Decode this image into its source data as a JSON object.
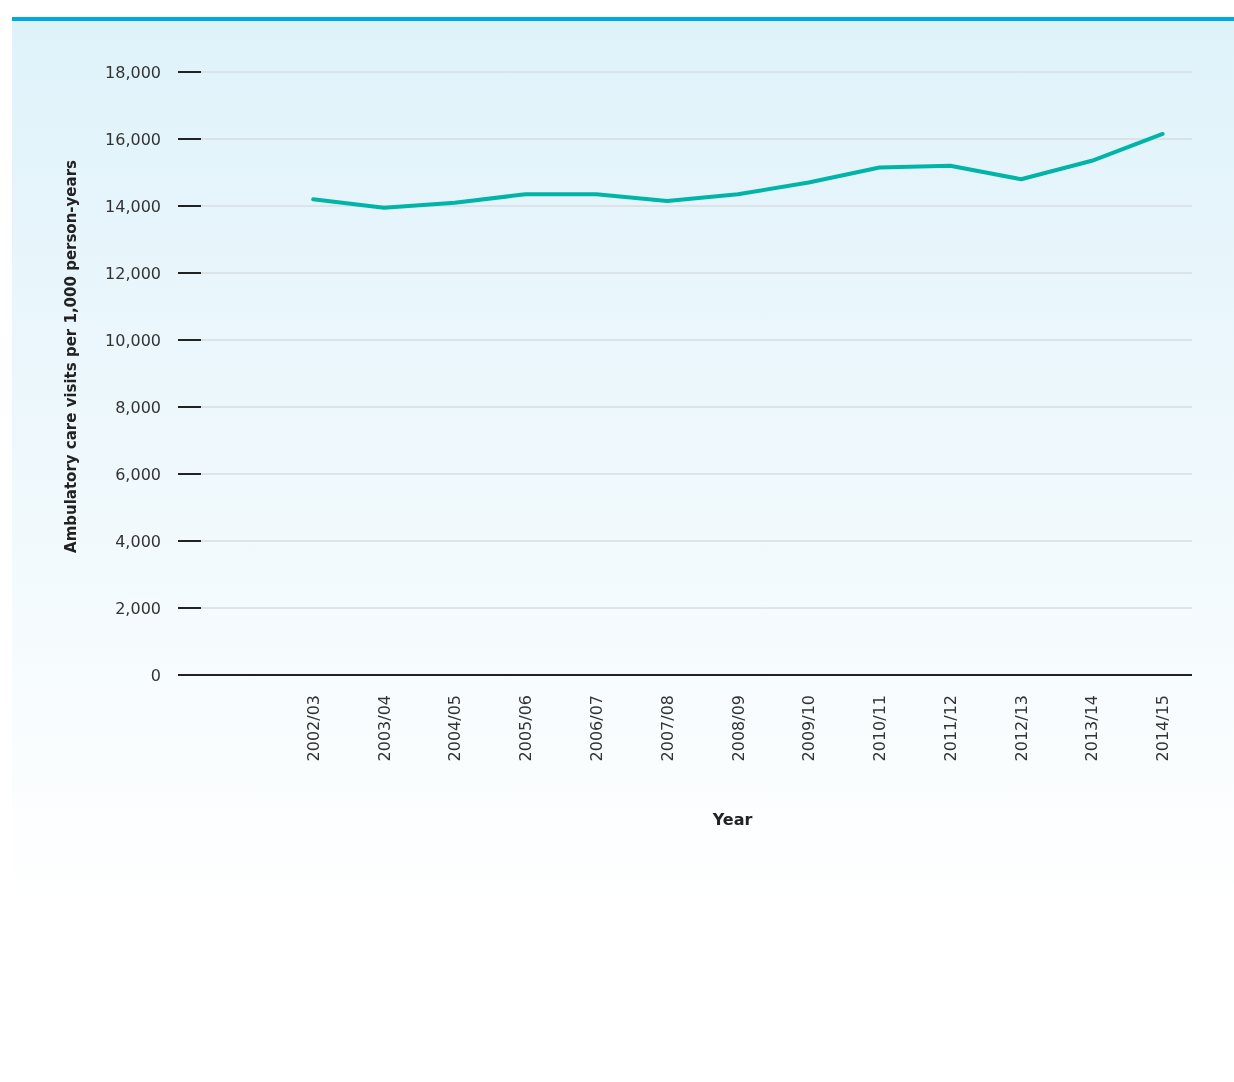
{
  "chart_data": {
    "type": "line",
    "xlabel": "Year",
    "ylabel": "Ambulatory care visits  per 1,000 person-years",
    "categories": [
      null,
      "2002/03",
      "2003/04",
      "2004/05",
      "2005/06",
      "2006/07",
      "2007/08",
      "2008/09",
      "2009/10",
      "2010/11",
      "2011/12",
      "2012/13",
      "2013/14",
      "2014/15"
    ],
    "series": [
      {
        "color": "#00b5a8",
        "values": [
          null,
          14200,
          13950,
          14100,
          14350,
          14350,
          14150,
          14350,
          14700,
          15150,
          15200,
          14800,
          15350,
          16150
        ]
      }
    ],
    "ylim": [
      0,
      18000
    ],
    "yticks": [
      {
        "value": 0,
        "label": "0"
      },
      {
        "value": 2000,
        "label": "2,000"
      },
      {
        "value": 4000,
        "label": "4,000"
      },
      {
        "value": 6000,
        "label": "6,000"
      },
      {
        "value": 8000,
        "label": "8,000"
      },
      {
        "value": 10000,
        "label": "10,000"
      },
      {
        "value": 12000,
        "label": "12,000"
      },
      {
        "value": 14000,
        "label": "14,000"
      },
      {
        "value": 16000,
        "label": "16,000"
      },
      {
        "value": 18000,
        "label": "18,000"
      }
    ],
    "grid": "y",
    "marker": "none",
    "line_style": "solid"
  }
}
